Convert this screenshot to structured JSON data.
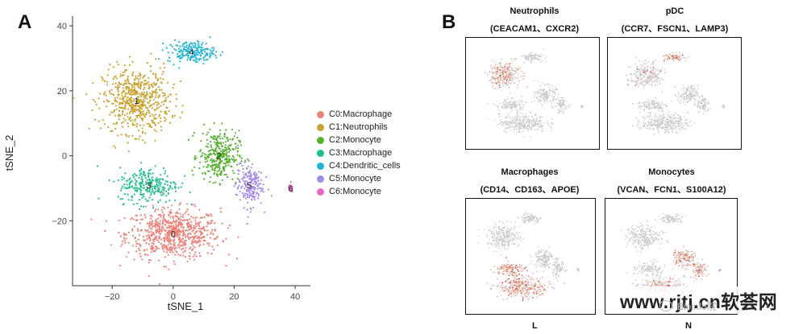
{
  "panels": {
    "a_label": "A",
    "b_label": "B"
  },
  "chart_data": [
    {
      "type": "scatter",
      "title": "",
      "xlabel": "tSNE_1",
      "ylabel": "tSNE_2",
      "xlim": [
        -33,
        45
      ],
      "ylim": [
        -40,
        43
      ],
      "xticks": [
        -20,
        0,
        20,
        40
      ],
      "yticks": [
        -20,
        0,
        20,
        40
      ],
      "xtick_labels": [
        "−20",
        "0",
        "20",
        "40"
      ],
      "ytick_labels": [
        "−20",
        "0",
        "20",
        "40"
      ],
      "grid": false,
      "legend_position": "right",
      "clusters": [
        {
          "id": "0",
          "label": "C0:Macrophage",
          "color": "#F07F77",
          "center": [
            0,
            -24
          ],
          "spread": [
            14,
            7
          ],
          "n": 700
        },
        {
          "id": "1",
          "label": "C1:Neutrophils",
          "color": "#C9A12C",
          "center": [
            -12,
            17
          ],
          "spread": [
            10,
            9
          ],
          "n": 600
        },
        {
          "id": "2",
          "label": "C2:Monocyte",
          "color": "#55B02F",
          "center": [
            15,
            0
          ],
          "spread": [
            6,
            7
          ],
          "n": 330
        },
        {
          "id": "3",
          "label": "C3:Macrophage",
          "color": "#1FBE8E",
          "center": [
            -8,
            -9
          ],
          "spread": [
            9,
            5
          ],
          "n": 260
        },
        {
          "id": "4",
          "label": "C4:Dendritic_cells",
          "color": "#20B5D8",
          "center": [
            6,
            32
          ],
          "spread": [
            7,
            3
          ],
          "n": 200
        },
        {
          "id": "5",
          "label": "C5:Monocyte",
          "color": "#A28AF0",
          "center": [
            25,
            -9
          ],
          "spread": [
            4,
            6
          ],
          "n": 190
        },
        {
          "id": "6",
          "label": "C6:Monocyte",
          "color": "#F063C9",
          "center": [
            38.5,
            -10
          ],
          "spread": [
            0.6,
            1.0
          ],
          "n": 25
        }
      ]
    },
    {
      "type": "scatter",
      "subplots": [
        {
          "name": "Neutrophils",
          "markers": "(CEACAM1、CXCR2)",
          "highlight": "upper-left",
          "intensity": 0.5
        },
        {
          "name": "pDC",
          "markers": "(CCR7、FSCN1、LAMP3)",
          "highlight": "top",
          "intensity": 0.35
        },
        {
          "name": "Macrophages",
          "markers": "(CD14、CD163、APOE)",
          "highlight": "bottom",
          "intensity": 0.85
        },
        {
          "name": "Monocytes",
          "markers": "(VCAN、FCN1、S100A12)",
          "highlight": "right",
          "intensity": 0.6
        }
      ]
    }
  ],
  "bottom_labels": [
    "L",
    "N"
  ],
  "watermark": "www.rjtj.cn软荟网",
  "wechat_tag": "Bioinfo院"
}
